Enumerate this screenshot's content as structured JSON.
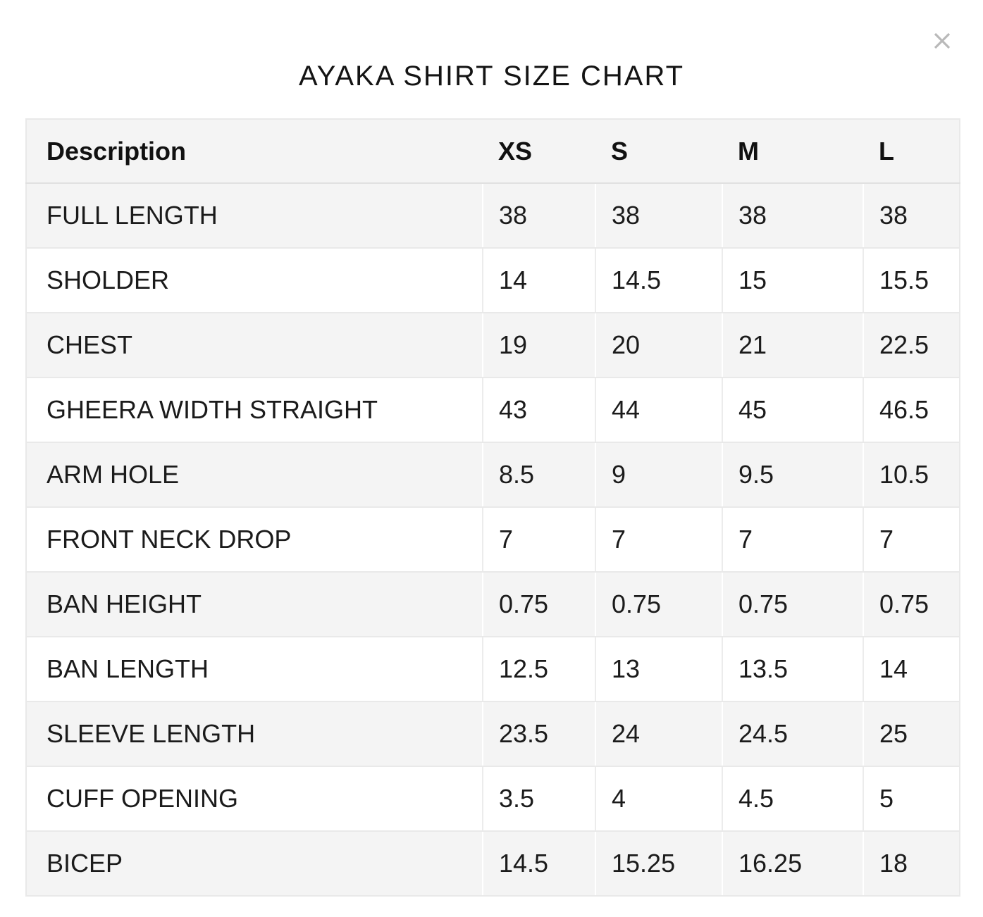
{
  "modal": {
    "title": "AYAKA SHIRT SIZE CHART",
    "close_label": "close"
  },
  "table": {
    "columns": [
      "Description",
      "XS",
      "S",
      "M",
      "L"
    ],
    "rows": [
      {
        "label": "FULL LENGTH",
        "values": [
          "38",
          "38",
          "38",
          "38"
        ]
      },
      {
        "label": "SHOLDER",
        "values": [
          "14",
          "14.5",
          "15",
          "15.5"
        ]
      },
      {
        "label": "CHEST",
        "values": [
          "19",
          "20",
          "21",
          "22.5"
        ]
      },
      {
        "label": "GHEERA WIDTH STRAIGHT",
        "values": [
          "43",
          "44",
          "45",
          "46.5"
        ]
      },
      {
        "label": "ARM HOLE",
        "values": [
          "8.5",
          "9",
          "9.5",
          "10.5"
        ]
      },
      {
        "label": "FRONT NECK DROP",
        "values": [
          "7",
          "7",
          "7",
          "7"
        ]
      },
      {
        "label": "BAN HEIGHT",
        "values": [
          "0.75",
          "0.75",
          "0.75",
          "0.75"
        ]
      },
      {
        "label": "BAN LENGTH",
        "values": [
          "12.5",
          "13",
          "13.5",
          "14"
        ]
      },
      {
        "label": "SLEEVE LENGTH",
        "values": [
          "23.5",
          "24",
          "24.5",
          "25"
        ]
      },
      {
        "label": "CUFF OPENING",
        "values": [
          "3.5",
          "4",
          "4.5",
          "5"
        ]
      },
      {
        "label": "BICEP",
        "values": [
          "14.5",
          "15.25",
          "16.25",
          "18"
        ]
      }
    ]
  },
  "colors": {
    "row_alt_bg": "#f4f4f4",
    "header_bg": "#f4f4f4",
    "border": "#e9e9e9",
    "divider_on_gray": "#ffffff",
    "divider_on_white": "#ececec",
    "close_icon": "#b9b9b9",
    "text": "#1b1b1b"
  }
}
